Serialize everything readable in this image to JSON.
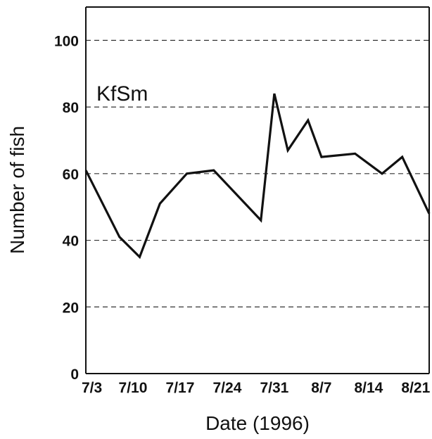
{
  "chart_data": {
    "type": "line",
    "title": "",
    "xlabel": "Date (1996)",
    "ylabel": "Number of fish",
    "annotation": "KfSm",
    "x_tick_labels": [
      "7/3",
      "7/10",
      "7/17",
      "7/24",
      "7/31",
      "8/7",
      "8/14",
      "8/21"
    ],
    "y_tick_labels": [
      "0",
      "20",
      "40",
      "60",
      "80",
      "100"
    ],
    "y_ticks": [
      0,
      20,
      40,
      60,
      80,
      100
    ],
    "xlim": [
      "1996-07-03",
      "1996-08-23"
    ],
    "ylim": [
      0,
      110
    ],
    "grid": "horizontal-dashed",
    "series": [
      {
        "x": [
          "1996-07-03",
          "1996-07-08",
          "1996-07-11",
          "1996-07-14",
          "1996-07-18",
          "1996-07-22",
          "1996-07-29",
          "1996-07-31",
          "1996-08-02",
          "1996-08-05",
          "1996-08-07",
          "1996-08-12",
          "1996-08-16",
          "1996-08-19",
          "1996-08-23"
        ],
        "y": [
          61,
          41,
          35,
          51,
          60,
          61,
          46,
          84,
          67,
          76,
          65,
          66,
          60,
          65,
          48
        ]
      }
    ],
    "colors": {
      "line": "#111111",
      "axis": "#111111",
      "grid": "#333333",
      "text": "#111111"
    }
  }
}
